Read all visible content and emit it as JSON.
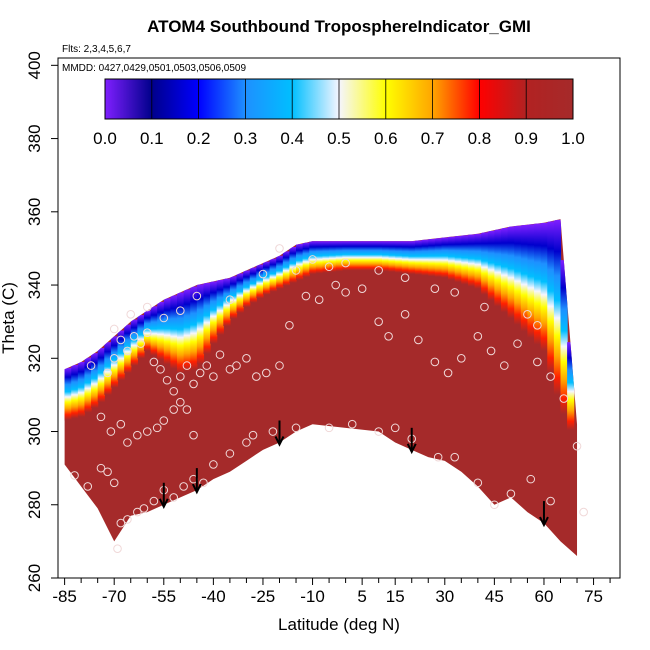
{
  "chart_data": {
    "type": "heatmap",
    "title": "ATOM4 Southbound TroposphereIndicator_GMI",
    "subtitle_flights": "Flts: 2,3,4,5,6,7",
    "subtitle_dates": "MMDD: 0427,0429,0501,0503,0506,0509",
    "xlabel": "Latitude (deg N)",
    "ylabel": "Theta (C)",
    "xlim": [
      -87,
      83
    ],
    "ylim": [
      260,
      402
    ],
    "x_ticks": [
      -85,
      -70,
      -55,
      -40,
      -25,
      -10,
      5,
      15,
      30,
      45,
      60,
      75
    ],
    "x_tick_labels": [
      "-85",
      "-70",
      "-55",
      "-40",
      "-25",
      "-10",
      "5",
      "15",
      "30",
      "45",
      "60",
      "75"
    ],
    "x_minor_step": 5,
    "y_ticks": [
      260,
      280,
      300,
      320,
      340,
      360,
      380,
      400
    ],
    "y_tick_labels": [
      "260",
      "280",
      "300",
      "320",
      "340",
      "360",
      "380",
      "400"
    ],
    "colorbar": {
      "range": [
        0,
        1
      ],
      "ticks": [
        "0.0",
        "0.1",
        "0.2",
        "0.3",
        "0.4",
        "0.5",
        "0.6",
        "0.7",
        "0.8",
        "0.9",
        "1.0"
      ],
      "colors": [
        "#7f1fff",
        "#00008b",
        "#0000ff",
        "#1e90ff",
        "#00bfff",
        "#f5f5ff",
        "#ffff00",
        "#ffa500",
        "#ff0000",
        "#b22222",
        "#a52a2a"
      ]
    },
    "bottom_boundary": [
      [
        -85,
        291
      ],
      [
        -80,
        285
      ],
      [
        -75,
        279
      ],
      [
        -70,
        270
      ],
      [
        -65,
        277
      ],
      [
        -60,
        278
      ],
      [
        -55,
        280
      ],
      [
        -50,
        282
      ],
      [
        -45,
        284
      ],
      [
        -40,
        287
      ],
      [
        -35,
        289
      ],
      [
        -30,
        292
      ],
      [
        -25,
        295
      ],
      [
        -20,
        297
      ],
      [
        -15,
        300
      ],
      [
        -10,
        302
      ],
      [
        0,
        301
      ],
      [
        10,
        300
      ],
      [
        15,
        297
      ],
      [
        20,
        295
      ],
      [
        25,
        293
      ],
      [
        30,
        292
      ],
      [
        35,
        289
      ],
      [
        40,
        285
      ],
      [
        45,
        280
      ],
      [
        50,
        282
      ],
      [
        55,
        278
      ],
      [
        60,
        275
      ],
      [
        65,
        270
      ],
      [
        70,
        266
      ]
    ],
    "top_boundary": [
      [
        -85,
        317
      ],
      [
        -80,
        319
      ],
      [
        -75,
        322
      ],
      [
        -70,
        326
      ],
      [
        -65,
        330
      ],
      [
        -60,
        333
      ],
      [
        -55,
        336
      ],
      [
        -50,
        338
      ],
      [
        -45,
        340
      ],
      [
        -40,
        341
      ],
      [
        -35,
        342
      ],
      [
        -30,
        344
      ],
      [
        -25,
        346
      ],
      [
        -20,
        348
      ],
      [
        -15,
        351
      ],
      [
        -10,
        352
      ],
      [
        0,
        352
      ],
      [
        10,
        352
      ],
      [
        20,
        352
      ],
      [
        30,
        353
      ],
      [
        40,
        354
      ],
      [
        50,
        356
      ],
      [
        60,
        357
      ],
      [
        65,
        358
      ],
      [
        70,
        302
      ]
    ],
    "upper_gradient": [
      [
        -85,
        309
      ],
      [
        -80,
        310
      ],
      [
        -75,
        313
      ],
      [
        -70,
        318
      ],
      [
        -65,
        323
      ],
      [
        -60,
        328
      ],
      [
        -55,
        325
      ],
      [
        -50,
        322
      ],
      [
        -45,
        323
      ],
      [
        -40,
        330
      ],
      [
        -35,
        336
      ],
      [
        -30,
        340
      ],
      [
        -25,
        343
      ],
      [
        -20,
        345
      ],
      [
        -15,
        347
      ],
      [
        -10,
        349
      ],
      [
        0,
        350
      ],
      [
        10,
        350
      ],
      [
        20,
        349
      ],
      [
        30,
        348
      ],
      [
        40,
        345
      ],
      [
        50,
        337
      ],
      [
        60,
        328
      ],
      [
        65,
        313
      ],
      [
        70,
        302
      ]
    ],
    "observations": [
      [
        -82,
        288
      ],
      [
        -78,
        285
      ],
      [
        -74,
        290
      ],
      [
        -72,
        289
      ],
      [
        -70,
        286
      ],
      [
        -69,
        268
      ],
      [
        -68,
        275
      ],
      [
        -66,
        276
      ],
      [
        -63,
        278
      ],
      [
        -61,
        279
      ],
      [
        -58,
        281
      ],
      [
        -55,
        284
      ],
      [
        -52,
        282
      ],
      [
        -49,
        285
      ],
      [
        -46,
        287
      ],
      [
        -43,
        286
      ],
      [
        -40,
        291
      ],
      [
        -35,
        294
      ],
      [
        -30,
        297
      ],
      [
        -28,
        299
      ],
      [
        -22,
        300
      ],
      [
        -15,
        301
      ],
      [
        -5,
        301
      ],
      [
        2,
        302
      ],
      [
        10,
        300
      ],
      [
        15,
        301
      ],
      [
        20,
        298
      ],
      [
        28,
        293
      ],
      [
        33,
        293
      ],
      [
        40,
        286
      ],
      [
        45,
        280
      ],
      [
        50,
        283
      ],
      [
        56,
        287
      ],
      [
        62,
        281
      ],
      [
        70,
        296
      ],
      [
        72,
        278
      ],
      [
        -77,
        318
      ],
      [
        -72,
        316
      ],
      [
        -70,
        320
      ],
      [
        -68,
        325
      ],
      [
        -66,
        322
      ],
      [
        -64,
        326
      ],
      [
        -62,
        324
      ],
      [
        -60,
        327
      ],
      [
        -58,
        319
      ],
      [
        -56,
        317
      ],
      [
        -54,
        314
      ],
      [
        -52,
        311
      ],
      [
        -50,
        315
      ],
      [
        -48,
        318
      ],
      [
        -46,
        313
      ],
      [
        -44,
        316
      ],
      [
        -42,
        318
      ],
      [
        -40,
        315
      ],
      [
        -38,
        321
      ],
      [
        -35,
        317
      ],
      [
        -33,
        318
      ],
      [
        -30,
        320
      ],
      [
        -27,
        315
      ],
      [
        -24,
        316
      ],
      [
        -20,
        318
      ],
      [
        -17,
        329
      ],
      [
        -12,
        337
      ],
      [
        -8,
        336
      ],
      [
        -3,
        340
      ],
      [
        0,
        338
      ],
      [
        5,
        339
      ],
      [
        10,
        330
      ],
      [
        13,
        326
      ],
      [
        18,
        332
      ],
      [
        22,
        325
      ],
      [
        27,
        319
      ],
      [
        31,
        316
      ],
      [
        35,
        320
      ],
      [
        40,
        326
      ],
      [
        44,
        322
      ],
      [
        48,
        318
      ],
      [
        52,
        324
      ],
      [
        58,
        319
      ],
      [
        62,
        315
      ],
      [
        66,
        309
      ],
      [
        -74,
        304
      ],
      [
        -71,
        300
      ],
      [
        -68,
        302
      ],
      [
        -66,
        297
      ],
      [
        -63,
        299
      ],
      [
        -60,
        300
      ],
      [
        -57,
        301
      ],
      [
        -55,
        303
      ],
      [
        -52,
        306
      ],
      [
        -50,
        308
      ],
      [
        -48,
        306
      ],
      [
        -46,
        299
      ],
      [
        -70,
        328
      ],
      [
        -65,
        332
      ],
      [
        -60,
        334
      ],
      [
        -55,
        331
      ],
      [
        -50,
        333
      ],
      [
        -45,
        337
      ],
      [
        -35,
        336
      ],
      [
        -25,
        343
      ],
      [
        -15,
        344
      ],
      [
        -5,
        345
      ],
      [
        0,
        346
      ],
      [
        10,
        344
      ],
      [
        18,
        342
      ],
      [
        27,
        339
      ],
      [
        33,
        338
      ],
      [
        42,
        334
      ],
      [
        55,
        332
      ],
      [
        58,
        329
      ],
      [
        -20,
        350
      ],
      [
        -10,
        347
      ]
    ],
    "arrows_x": [
      -55,
      -45,
      -20,
      20,
      60
    ]
  }
}
